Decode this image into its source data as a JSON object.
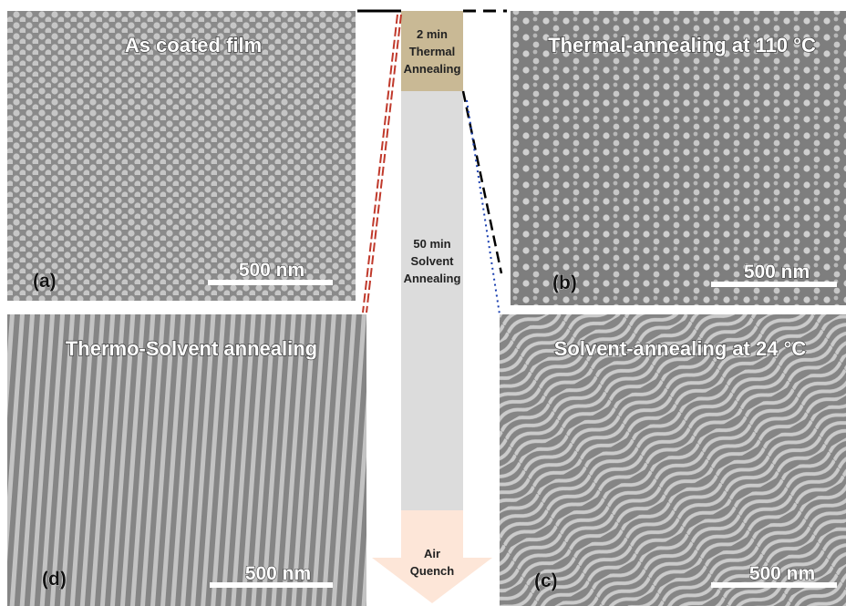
{
  "panels": [
    {
      "label": "(a)",
      "title": "As coated film",
      "scale_bar": "500 nm"
    },
    {
      "label": "(b)",
      "title": "Thermal-annealing at 110 °C",
      "scale_bar": "500 nm"
    },
    {
      "label": "(c)",
      "title": "Solvent-annealing at 24 °C",
      "scale_bar": "500 nm"
    },
    {
      "label": "(d)",
      "title": "Thermo-Solvent  annealing",
      "scale_bar": "500 nm"
    }
  ],
  "process": [
    {
      "lines": [
        "2 min",
        "Thermal",
        "Annealing"
      ]
    },
    {
      "lines": [
        "50 min",
        "Solvent",
        "Annealing"
      ]
    },
    {
      "lines": [
        "Air",
        "Quench"
      ]
    }
  ]
}
